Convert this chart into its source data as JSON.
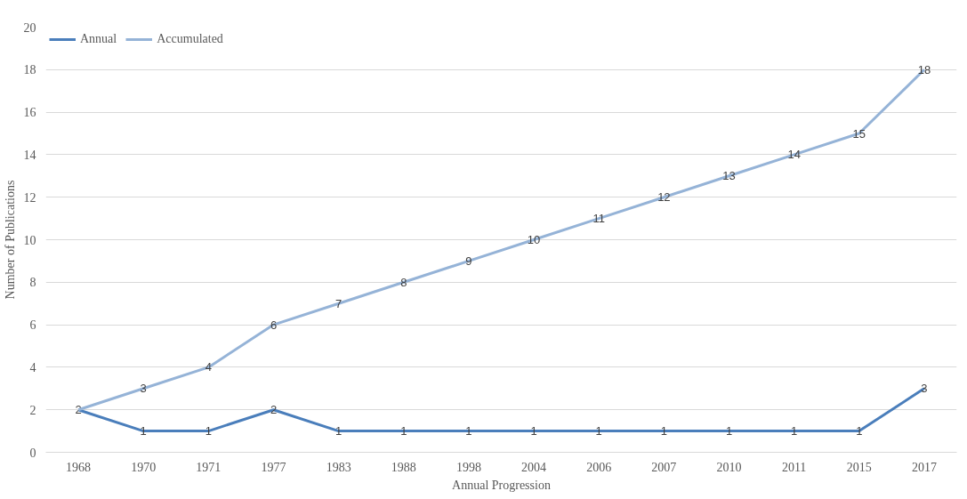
{
  "chart_data": {
    "type": "line",
    "xlabel": "Annual Progression",
    "ylabel": "Number of Publications",
    "categories": [
      "1968",
      "1970",
      "1971",
      "1977",
      "1983",
      "1988",
      "1998",
      "2004",
      "2006",
      "2007",
      "2010",
      "2011",
      "2015",
      "2017"
    ],
    "series": [
      {
        "name": "Annual",
        "color": "#4a7ebb",
        "values": [
          2,
          1,
          1,
          2,
          1,
          1,
          1,
          1,
          1,
          1,
          1,
          1,
          1,
          3
        ]
      },
      {
        "name": "Accumulated",
        "color": "#95b3d7",
        "values": [
          2,
          3,
          4,
          6,
          7,
          8,
          9,
          10,
          11,
          12,
          13,
          14,
          15,
          18
        ],
        "value_labels": [
          null,
          "3",
          "4",
          "6",
          "7",
          "8",
          "9",
          "10",
          "11",
          "12",
          "13",
          "14",
          "15",
          "18"
        ]
      }
    ],
    "ylim": [
      0,
      20
    ],
    "yticks": [
      0,
      2,
      4,
      6,
      8,
      10,
      12,
      14,
      16,
      18,
      20
    ],
    "grid": "y",
    "legend": "top",
    "data_labels": true,
    "marker": "none",
    "line_style": "solid"
  }
}
